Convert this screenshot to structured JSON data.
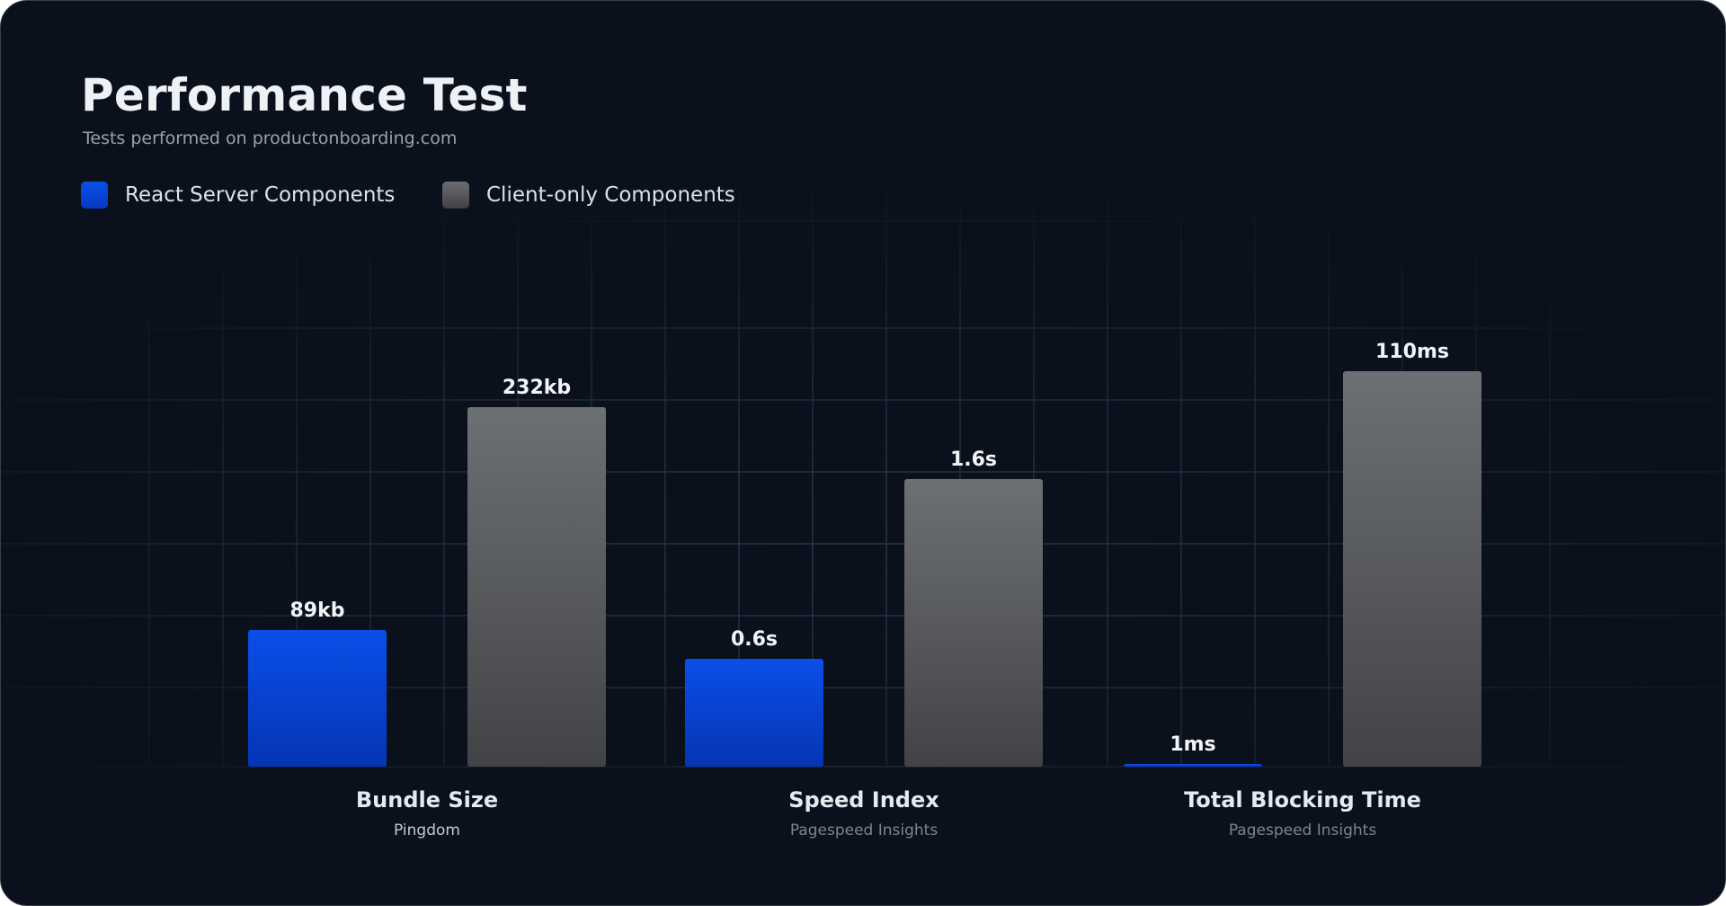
{
  "title": "Performance Test",
  "subtitle": "Tests performed on productonboarding.com",
  "colors": {
    "background": "#0a111d",
    "react_server": "#0645e0",
    "client_only": "#5a5c60",
    "grid": "#2c3646"
  },
  "legend": [
    {
      "label": "React Server Components",
      "color": "blue"
    },
    {
      "label": "Client-only Components",
      "color": "gray"
    }
  ],
  "chart_data": {
    "type": "bar",
    "title": "Performance Test",
    "subtitle": "Tests performed on productonboarding.com",
    "legend_placement": "top-left",
    "grid": true,
    "categories": [
      "Bundle Size",
      "Speed Index",
      "Total Blocking Time"
    ],
    "category_sources": [
      "Pingdom",
      "Pagespeed Insights",
      "Pagespeed Insights"
    ],
    "series": [
      {
        "name": "React Server Components",
        "values_display": [
          "89kb",
          "0.6s",
          "1ms"
        ],
        "relative_heights": [
          0.38,
          0.3,
          0.005
        ]
      },
      {
        "name": "Client-only Components",
        "values_display": [
          "232kb",
          "1.6s",
          "110ms"
        ],
        "relative_heights": [
          1.0,
          0.8,
          1.1
        ]
      }
    ]
  }
}
